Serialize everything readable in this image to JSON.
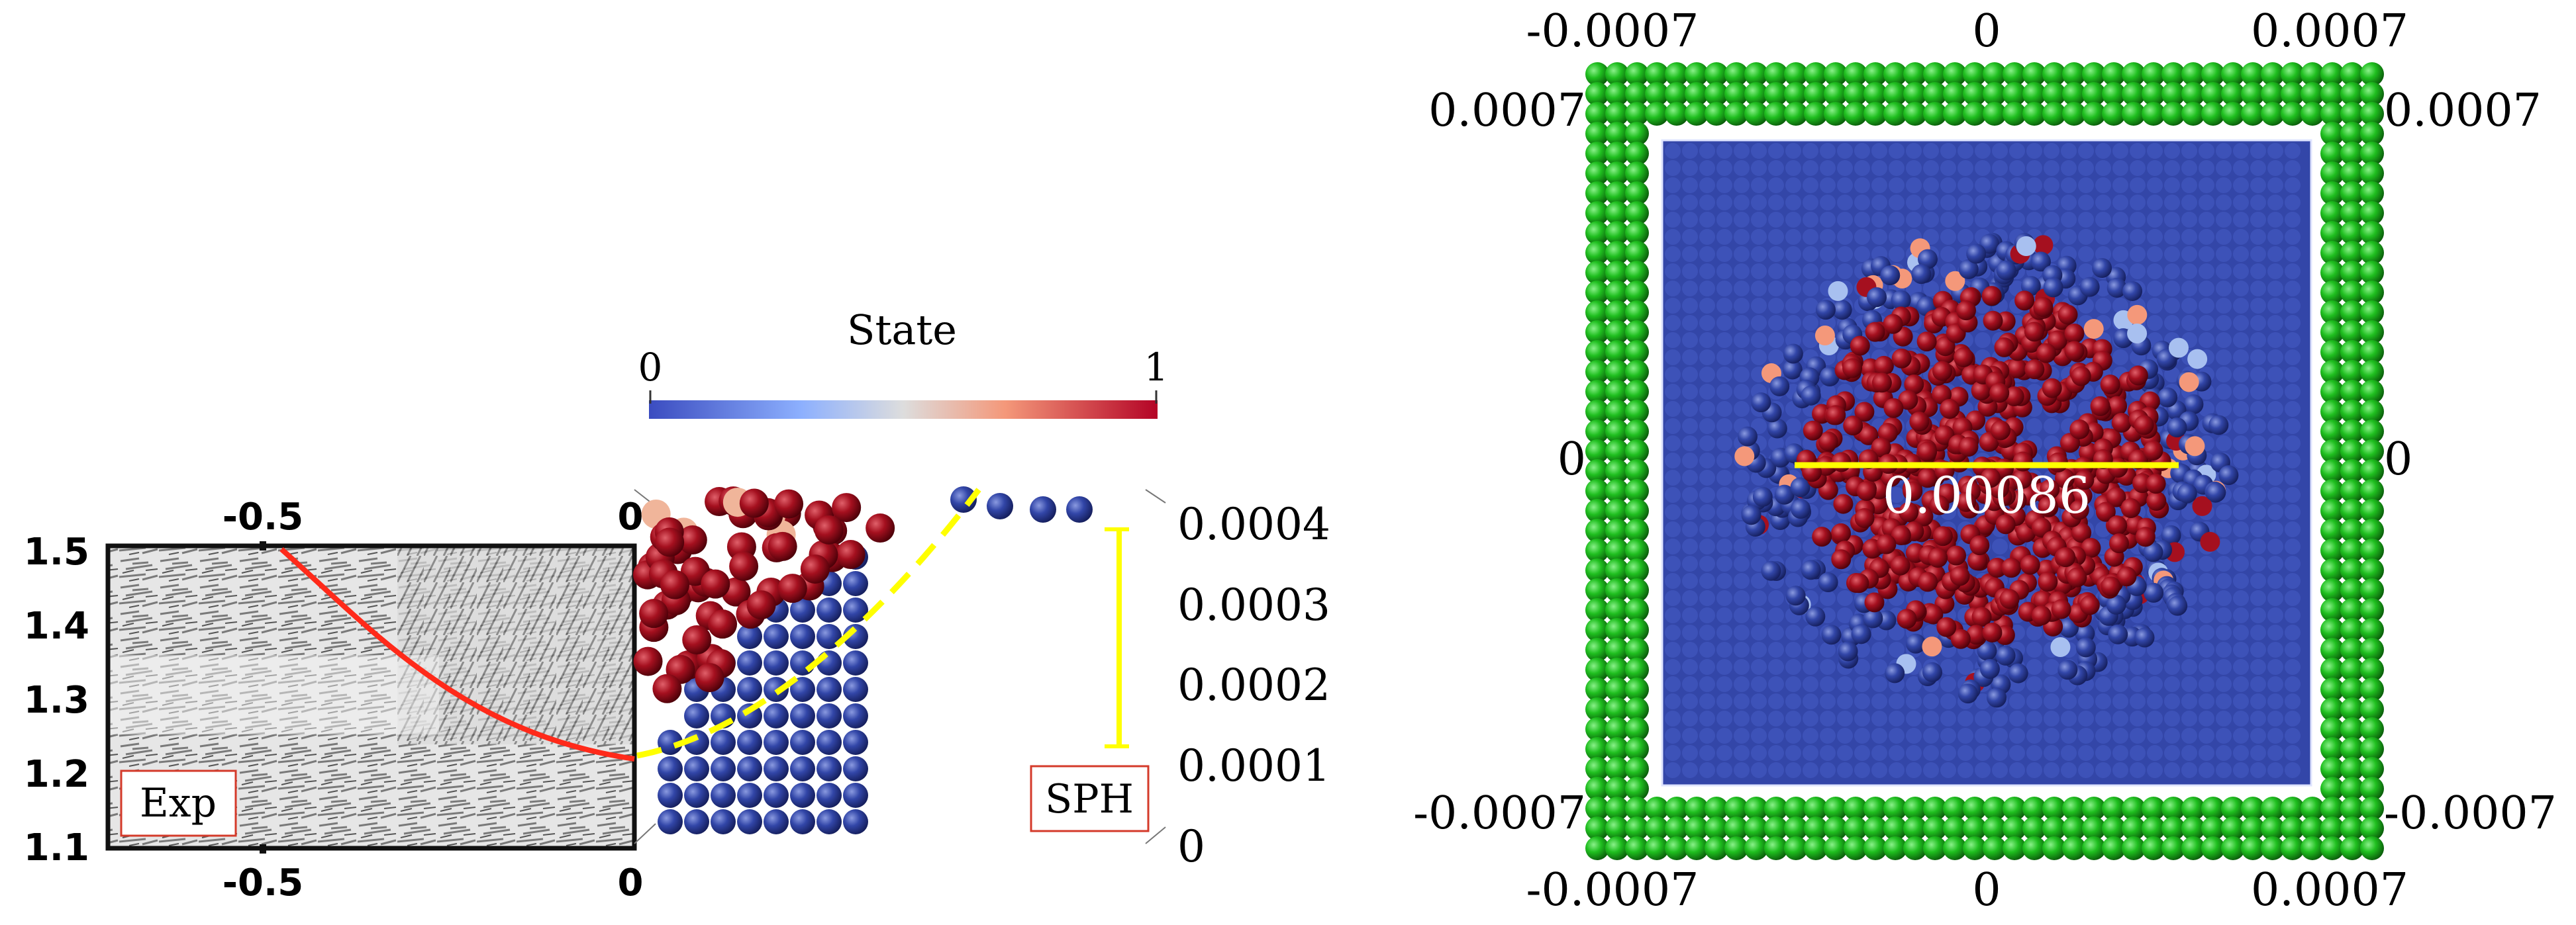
{
  "colorbar": {
    "title": "State",
    "min_label": "0",
    "max_label": "1",
    "stops": [
      "#3b4cc0",
      "#8db0fe",
      "#dddddd",
      "#f4987a",
      "#b40426"
    ]
  },
  "exp_panel": {
    "label": "Exp",
    "top_axis_ticks": [
      "-0.5",
      "0"
    ],
    "bottom_axis_ticks": [
      "-0.5",
      "0"
    ],
    "left_axis_ticks": [
      "1.5",
      "1.4",
      "1.3",
      "1.2",
      "1.1"
    ],
    "curve_color": "#ff2a1a"
  },
  "sph_side_panel": {
    "label": "SPH",
    "right_axis_ticks": [
      "0.0004",
      "0.0003",
      "0.0002",
      "0.0001",
      "0"
    ],
    "depth_annotation": "0.00027",
    "melt_color": "#9b0d1f",
    "substrate_color": "#2e3d9a",
    "boundary_color": "#ffff00"
  },
  "sph_top_panel": {
    "top_axis_ticks": [
      "-0.0007",
      "0",
      "0.0007"
    ],
    "bottom_axis_ticks": [
      "-0.0007",
      "0",
      "0.0007"
    ],
    "left_axis_ticks": [
      "0.0007",
      "0",
      "-0.0007"
    ],
    "right_axis_ticks": [
      "0.0007",
      "0",
      "-0.0007"
    ],
    "width_annotation": "0.00086",
    "wall_color": "#1fbf1f",
    "substrate_color": "#3346a8",
    "melt_color": "#a5101f"
  }
}
